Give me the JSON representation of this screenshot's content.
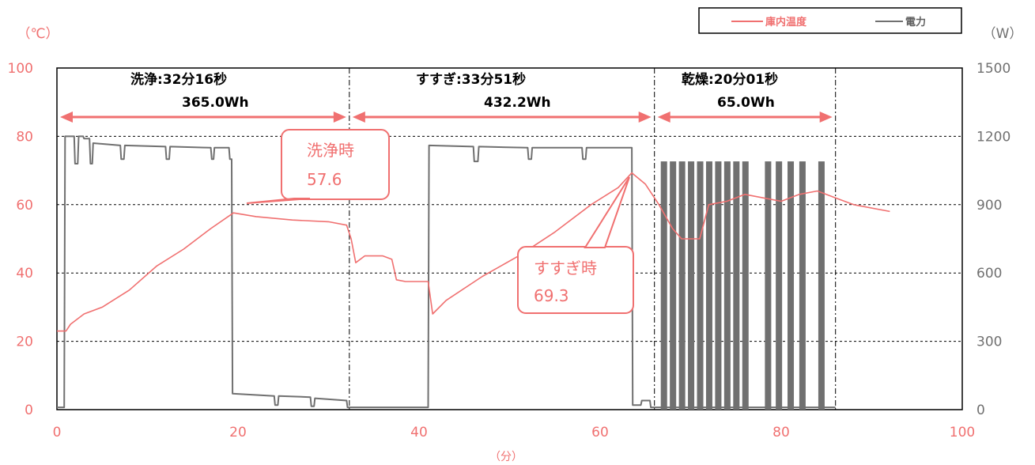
{
  "chart_data": {
    "type": "line",
    "xlabel": "（分）",
    "ylabel_left": "（℃）",
    "ylabel_right": "（W）",
    "xlim": [
      0,
      100
    ],
    "ylim_left": [
      0,
      100
    ],
    "ylim_right": [
      0,
      1500
    ],
    "xticks": [
      "0",
      "20",
      "40",
      "60",
      "80",
      "100"
    ],
    "yticks_left": [
      "0",
      "20",
      "40",
      "60",
      "80",
      "100"
    ],
    "yticks_right": [
      "0",
      "300",
      "600",
      "900",
      "1200",
      "1500"
    ],
    "grid": "dashed-horizontal",
    "legend_position": "top-right",
    "colors": {
      "temperature": "#f07070",
      "power": "#707070",
      "grid": "#000000"
    },
    "phase_boundaries": [
      32.3,
      66.0,
      86.0
    ],
    "phases": [
      {
        "title": "洗浄:32分16秒",
        "energy": "365.0Wh",
        "start": 0,
        "end": 32.3
      },
      {
        "title": "すすぎ:33分51秒",
        "energy": "432.2Wh",
        "start": 32.3,
        "end": 66.0
      },
      {
        "title": "乾燥:20分01秒",
        "energy": "65.0Wh",
        "start": 66.0,
        "end": 86.0
      }
    ],
    "annotations": [
      {
        "label": "洗浄時",
        "value": "57.6",
        "x": 19.5,
        "y": 57.6
      },
      {
        "label": "すすぎ時",
        "value": "69.3",
        "x": 63.5,
        "y": 69.3
      }
    ],
    "series": [
      {
        "name": "庫内温度",
        "axis": "left",
        "color": "#f07070",
        "points": [
          [
            0,
            23
          ],
          [
            1,
            23
          ],
          [
            1.5,
            25
          ],
          [
            3,
            28
          ],
          [
            5,
            30
          ],
          [
            8,
            35
          ],
          [
            11,
            42
          ],
          [
            14,
            47
          ],
          [
            17,
            53
          ],
          [
            19.5,
            57.6
          ],
          [
            22,
            56.5
          ],
          [
            26,
            55.5
          ],
          [
            30,
            55
          ],
          [
            32,
            54
          ],
          [
            32.5,
            50
          ],
          [
            33,
            43
          ],
          [
            34,
            45
          ],
          [
            36,
            45
          ],
          [
            37,
            44
          ],
          [
            37.5,
            38
          ],
          [
            38.5,
            37.5
          ],
          [
            41,
            37.5
          ],
          [
            41.5,
            28
          ],
          [
            43,
            32
          ],
          [
            47,
            39
          ],
          [
            51,
            45
          ],
          [
            55,
            52
          ],
          [
            59,
            60
          ],
          [
            62,
            65
          ],
          [
            63.5,
            69.3
          ],
          [
            65,
            66
          ],
          [
            66.5,
            60
          ],
          [
            68,
            53
          ],
          [
            69,
            50
          ],
          [
            71,
            50
          ],
          [
            72,
            60
          ],
          [
            74,
            61
          ],
          [
            76,
            63
          ],
          [
            78,
            62
          ],
          [
            80,
            61
          ],
          [
            82,
            63
          ],
          [
            84,
            64
          ],
          [
            86,
            62
          ],
          [
            88,
            60
          ],
          [
            92,
            58
          ]
        ]
      },
      {
        "name": "電力",
        "axis": "right",
        "color": "#707070",
        "points": [
          [
            0,
            10
          ],
          [
            0.8,
            10
          ],
          [
            0.9,
            1200
          ],
          [
            1.9,
            1200
          ],
          [
            2,
            1080
          ],
          [
            2.3,
            1080
          ],
          [
            2.4,
            1200
          ],
          [
            2.9,
            1200
          ],
          [
            3,
            1190
          ],
          [
            3.6,
            1190
          ],
          [
            3.7,
            1080
          ],
          [
            3.9,
            1080
          ],
          [
            4,
            1170
          ],
          [
            7,
            1160
          ],
          [
            7.1,
            1100
          ],
          [
            7.4,
            1100
          ],
          [
            7.5,
            1160
          ],
          [
            12,
            1155
          ],
          [
            12.1,
            1100
          ],
          [
            12.4,
            1100
          ],
          [
            12.5,
            1155
          ],
          [
            17,
            1150
          ],
          [
            17.1,
            1100
          ],
          [
            17.3,
            1100
          ],
          [
            17.4,
            1150
          ],
          [
            19,
            1150
          ],
          [
            19.1,
            1100
          ],
          [
            19.3,
            1100
          ],
          [
            19.4,
            70
          ],
          [
            24,
            60
          ],
          [
            24.1,
            20
          ],
          [
            24.4,
            20
          ],
          [
            24.5,
            60
          ],
          [
            28,
            55
          ],
          [
            28.1,
            15
          ],
          [
            28.4,
            15
          ],
          [
            28.5,
            50
          ],
          [
            32,
            40
          ],
          [
            32.1,
            10
          ],
          [
            41,
            10
          ],
          [
            41.1,
            1160
          ],
          [
            46,
            1155
          ],
          [
            46.1,
            1090
          ],
          [
            46.5,
            1090
          ],
          [
            46.6,
            1155
          ],
          [
            52,
            1150
          ],
          [
            52.1,
            1100
          ],
          [
            52.4,
            1100
          ],
          [
            52.5,
            1150
          ],
          [
            58,
            1150
          ],
          [
            58.1,
            1100
          ],
          [
            58.4,
            1100
          ],
          [
            58.5,
            1150
          ],
          [
            63.5,
            1150
          ],
          [
            63.6,
            20
          ],
          [
            64.5,
            20
          ],
          [
            64.6,
            40
          ],
          [
            65.5,
            40
          ],
          [
            65.6,
            10
          ],
          [
            86,
            10
          ]
        ],
        "bursts": [
          [
            66.7,
            67.4
          ],
          [
            67.7,
            68.4
          ],
          [
            68.7,
            69.4
          ],
          [
            69.7,
            70.4
          ],
          [
            70.7,
            71.4
          ],
          [
            71.7,
            72.4
          ],
          [
            72.7,
            73.4
          ],
          [
            73.7,
            74.4
          ],
          [
            74.7,
            75.4
          ],
          [
            75.7,
            76.4
          ],
          [
            78.2,
            78.9
          ],
          [
            79.4,
            80.1
          ],
          [
            80.7,
            81.4
          ],
          [
            82.0,
            82.7
          ],
          [
            84.1,
            84.8
          ]
        ],
        "burst_value": 1090
      }
    ],
    "legend": [
      {
        "label": "庫内温度",
        "color": "#f07070"
      },
      {
        "label": "電力",
        "color": "#707070"
      }
    ]
  }
}
